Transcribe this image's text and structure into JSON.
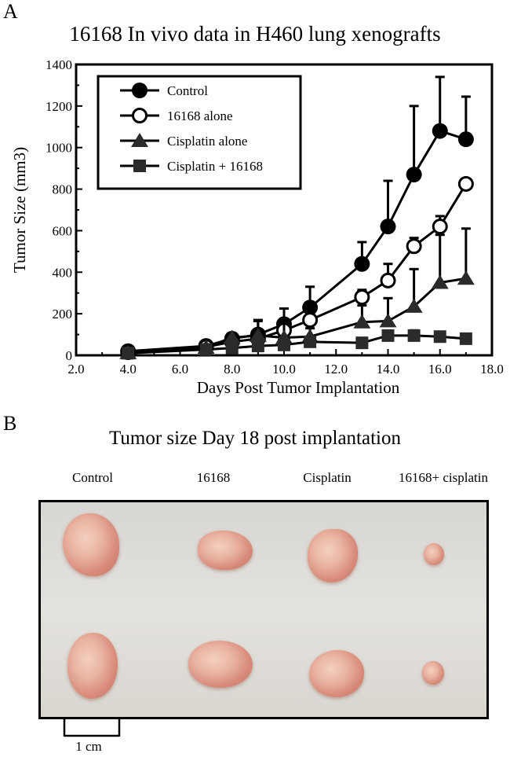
{
  "panel_a_label": "A",
  "panel_b_label": "B",
  "chart_data": {
    "type": "line",
    "title": "16168 In vivo data in H460 lung xenografts",
    "xlabel": "Days Post Tumor Implantation",
    "ylabel": "Tumor Size (mm3)",
    "xlim": [
      2.0,
      18.0
    ],
    "ylim": [
      0,
      1400
    ],
    "xticks": [
      "2.0",
      "4.0",
      "6.0",
      "8.0",
      "10.0",
      "12.0",
      "14.0",
      "16.0",
      "18.0"
    ],
    "yticks": [
      "0",
      "200",
      "400",
      "600",
      "800",
      "1000",
      "1200",
      "1400"
    ],
    "legend_position": "top-left",
    "series": [
      {
        "name": "Control",
        "marker": "filled-circle",
        "x": [
          4,
          7,
          8,
          9,
          10,
          11,
          13,
          14,
          15,
          16,
          17
        ],
        "y": [
          20,
          45,
          80,
          100,
          150,
          230,
          440,
          620,
          870,
          1080,
          1040
        ],
        "err": [
          5,
          10,
          25,
          70,
          75,
          100,
          105,
          220,
          330,
          260,
          205
        ]
      },
      {
        "name": "16168 alone",
        "marker": "open-circle",
        "x": [
          4,
          7,
          8,
          9,
          10,
          11,
          13,
          14,
          15,
          16,
          17
        ],
        "y": [
          15,
          40,
          65,
          80,
          120,
          170,
          280,
          360,
          525,
          620,
          825
        ],
        "err": [
          5,
          10,
          15,
          20,
          30,
          25,
          35,
          80,
          40,
          50,
          20
        ]
      },
      {
        "name": "Cisplatin alone",
        "marker": "filled-triangle",
        "x": [
          4,
          7,
          8,
          9,
          10,
          11,
          13,
          14,
          15,
          16,
          17
        ],
        "y": [
          12,
          38,
          85,
          95,
          85,
          90,
          160,
          165,
          235,
          350,
          370
        ],
        "err": [
          5,
          10,
          20,
          70,
          70,
          40,
          80,
          110,
          180,
          230,
          240
        ]
      },
      {
        "name": "Cisplatin + 16168",
        "marker": "filled-square",
        "x": [
          4,
          7,
          8,
          9,
          10,
          11,
          13,
          14,
          15,
          16,
          17
        ],
        "y": [
          10,
          28,
          35,
          45,
          50,
          65,
          60,
          95,
          95,
          90,
          80
        ],
        "err": [
          3,
          5,
          8,
          10,
          10,
          15,
          10,
          20,
          25,
          15,
          15
        ]
      }
    ]
  },
  "photo_panel": {
    "title": "Tumor size Day 18 post implantation",
    "columns": [
      "Control",
      "16168",
      "Cisplatin",
      "16168+ cisplatin"
    ],
    "scale_bar_label": "1 cm"
  }
}
